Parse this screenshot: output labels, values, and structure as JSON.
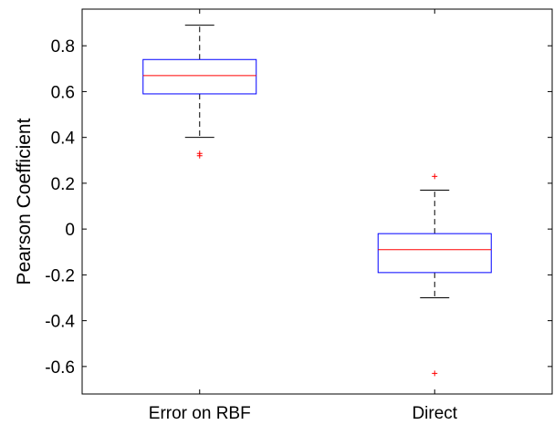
{
  "chart_data": {
    "type": "box",
    "title": "",
    "xlabel": "",
    "ylabel": "Pearson Coefficient",
    "ylim": [
      -0.72,
      0.96
    ],
    "yticks": [
      -0.6,
      -0.4,
      -0.2,
      0,
      0.2,
      0.4,
      0.6,
      0.8
    ],
    "ytick_labels": [
      "-0.6",
      "-0.4",
      "-0.2",
      "0",
      "0.2",
      "0.4",
      "0.6",
      "0.8"
    ],
    "grid": false,
    "categories": [
      "Error on RBF",
      "Direct"
    ],
    "boxes": [
      {
        "category": "Error on RBF",
        "whisker_low": 0.4,
        "q1": 0.59,
        "median": 0.67,
        "q3": 0.74,
        "whisker_high": 0.89,
        "outliers": [
          0.33,
          0.32
        ]
      },
      {
        "category": "Direct",
        "whisker_low": -0.3,
        "q1": -0.19,
        "median": -0.09,
        "q3": -0.02,
        "whisker_high": 0.17,
        "outliers": [
          0.23,
          -0.63
        ]
      }
    ],
    "colors": {
      "box": "#0000ff",
      "median": "#ff0000",
      "whisker": "#000000",
      "outlier": "#ff0000",
      "axis": "#000000"
    }
  }
}
